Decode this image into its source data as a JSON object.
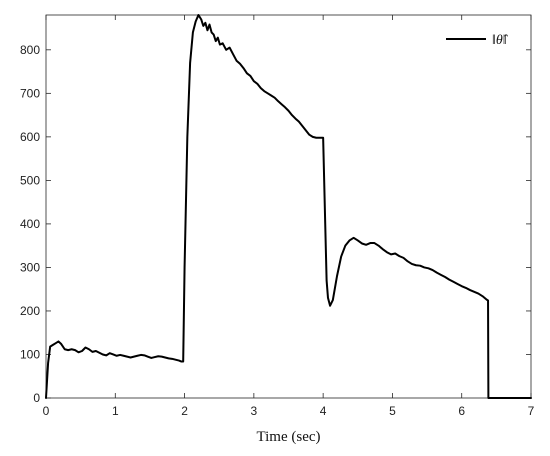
{
  "chart_data": {
    "type": "line",
    "title": "",
    "xlabel": "Time (sec)",
    "ylabel": "",
    "xlim": [
      0,
      7
    ],
    "ylim": [
      0,
      880
    ],
    "xticks": [
      0,
      1,
      2,
      3,
      4,
      5,
      6,
      7
    ],
    "yticks": [
      0,
      100,
      200,
      300,
      400,
      500,
      600,
      700,
      800
    ],
    "grid": false,
    "legend_position": "top-right",
    "series": [
      {
        "name": "‖θ̂‖",
        "color": "#000000",
        "x": [
          0.0,
          0.03,
          0.06,
          0.1,
          0.14,
          0.18,
          0.22,
          0.27,
          0.32,
          0.37,
          0.42,
          0.47,
          0.52,
          0.57,
          0.62,
          0.67,
          0.72,
          0.77,
          0.82,
          0.87,
          0.92,
          0.97,
          1.02,
          1.07,
          1.12,
          1.17,
          1.22,
          1.27,
          1.32,
          1.37,
          1.42,
          1.47,
          1.52,
          1.57,
          1.62,
          1.67,
          1.72,
          1.77,
          1.82,
          1.87,
          1.92,
          1.95,
          1.98,
          2.0,
          2.04,
          2.08,
          2.12,
          2.16,
          2.2,
          2.24,
          2.27,
          2.3,
          2.33,
          2.36,
          2.39,
          2.42,
          2.45,
          2.48,
          2.51,
          2.55,
          2.6,
          2.65,
          2.7,
          2.75,
          2.8,
          2.85,
          2.9,
          2.95,
          3.0,
          3.05,
          3.1,
          3.15,
          3.2,
          3.25,
          3.3,
          3.35,
          3.4,
          3.45,
          3.5,
          3.55,
          3.6,
          3.65,
          3.7,
          3.75,
          3.8,
          3.85,
          3.9,
          3.95,
          4.0,
          4.03,
          4.05,
          4.07,
          4.1,
          4.14,
          4.2,
          4.26,
          4.32,
          4.38,
          4.44,
          4.5,
          4.56,
          4.62,
          4.68,
          4.74,
          4.8,
          4.86,
          4.92,
          4.98,
          5.04,
          5.1,
          5.16,
          5.22,
          5.28,
          5.34,
          5.4,
          5.46,
          5.52,
          5.58,
          5.64,
          5.7,
          5.76,
          5.82,
          5.88,
          5.94,
          6.0,
          6.06,
          6.12,
          6.18,
          6.24,
          6.3,
          6.36,
          6.38,
          6.385,
          6.5,
          6.7,
          7.0
        ],
        "y": [
          0,
          80,
          118,
          122,
          126,
          130,
          124,
          112,
          110,
          112,
          110,
          105,
          108,
          116,
          112,
          106,
          108,
          104,
          100,
          98,
          103,
          100,
          97,
          99,
          97,
          95,
          93,
          95,
          97,
          99,
          98,
          95,
          92,
          94,
          96,
          95,
          93,
          91,
          90,
          88,
          86,
          84,
          84,
          300,
          600,
          770,
          840,
          865,
          880,
          870,
          855,
          862,
          845,
          858,
          840,
          835,
          820,
          828,
          812,
          815,
          800,
          805,
          790,
          775,
          768,
          758,
          746,
          740,
          728,
          722,
          712,
          705,
          700,
          695,
          690,
          682,
          675,
          668,
          660,
          650,
          642,
          635,
          625,
          615,
          605,
          600,
          598,
          598,
          598,
          400,
          270,
          230,
          212,
          225,
          280,
          325,
          350,
          362,
          368,
          362,
          355,
          352,
          356,
          356,
          350,
          342,
          335,
          330,
          332,
          326,
          322,
          314,
          308,
          305,
          304,
          300,
          298,
          294,
          288,
          283,
          278,
          272,
          267,
          262,
          257,
          253,
          248,
          244,
          240,
          234,
          226,
          224,
          0,
          0,
          0,
          0
        ]
      }
    ]
  }
}
